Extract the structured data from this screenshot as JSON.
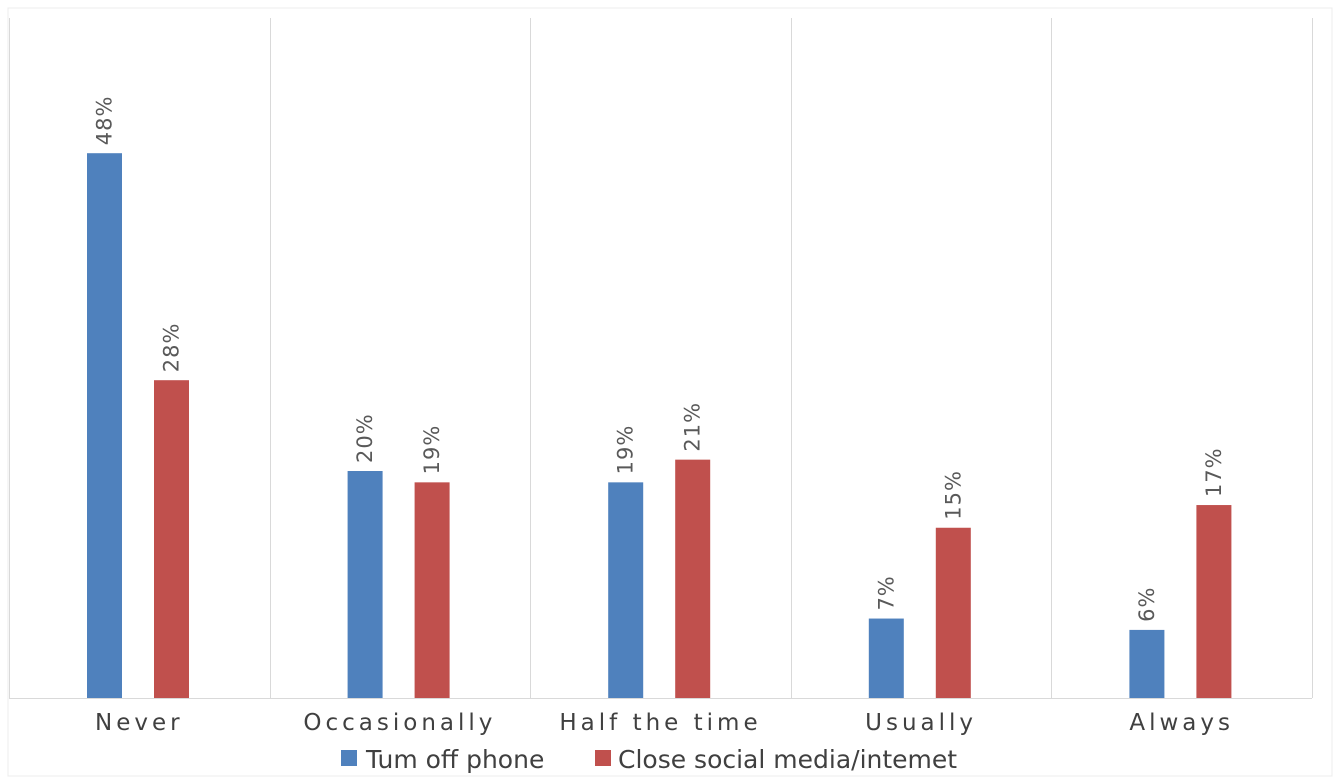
{
  "chart_data": {
    "type": "bar",
    "categories": [
      "Never",
      "Occasionally",
      "Half the time",
      "Usually",
      "Always"
    ],
    "series": [
      {
        "name": "Tum off phone",
        "values": [
          48,
          20,
          19,
          7,
          6
        ],
        "labels": [
          "48%",
          "20%",
          "19%",
          "7%",
          "6%"
        ],
        "color": "#4f81bd"
      },
      {
        "name": "Close social media/intemet",
        "values": [
          28,
          19,
          21,
          15,
          17
        ],
        "labels": [
          "28%",
          "19%",
          "21%",
          "15%",
          "17%"
        ],
        "color": "#c0504d"
      }
    ],
    "ylim": [
      0,
      50
    ],
    "grid": "vertical category separators",
    "legend": "bottom-center",
    "data_labels": "rotated vertical above bars"
  }
}
